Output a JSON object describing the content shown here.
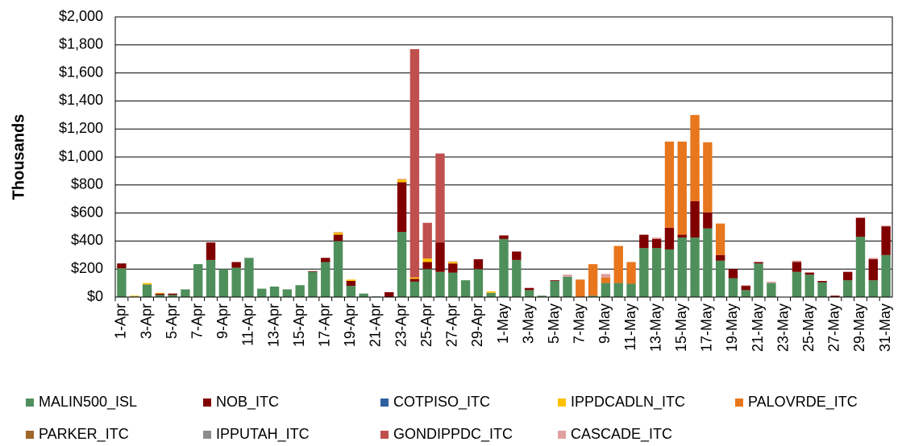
{
  "chart_data": {
    "type": "stacked_bar",
    "y_axis_label": "Thousands",
    "categories": [
      "1-Apr",
      null,
      "3-Apr",
      null,
      "5-Apr",
      null,
      "7-Apr",
      null,
      "9-Apr",
      null,
      "11-Apr",
      null,
      "13-Apr",
      null,
      "15-Apr",
      null,
      "17-Apr",
      null,
      "19-Apr",
      null,
      "21-Apr",
      null,
      "23-Apr",
      null,
      "25-Apr",
      null,
      "27-Apr",
      null,
      "29-Apr",
      null,
      "1-May",
      null,
      "3-May",
      null,
      "5-May",
      null,
      "7-May",
      null,
      "9-May",
      null,
      "11-May",
      null,
      "13-May",
      null,
      "15-May",
      null,
      "17-May",
      null,
      "19-May",
      null,
      "21-May",
      null,
      "23-May",
      null,
      "25-May",
      null,
      "27-May",
      null,
      "29-May",
      null,
      "31-May"
    ],
    "series": [
      {
        "name": "MALIN500_ISL",
        "color": "#4f8f5c",
        "values": [
          205,
          5,
          90,
          15,
          15,
          55,
          235,
          265,
          200,
          210,
          280,
          60,
          75,
          55,
          85,
          180,
          250,
          400,
          80,
          25,
          5,
          0,
          465,
          110,
          200,
          180,
          175,
          120,
          200,
          30,
          415,
          265,
          50,
          10,
          115,
          145,
          0,
          10,
          100,
          100,
          95,
          350,
          350,
          340,
          425,
          425,
          490,
          260,
          135,
          50,
          240,
          100,
          0,
          180,
          160,
          105,
          0,
          120,
          430,
          120,
          300
        ]
      },
      {
        "name": "NOB_ITC",
        "color": "#800000",
        "values": [
          35,
          0,
          0,
          10,
          10,
          0,
          0,
          125,
          0,
          40,
          0,
          0,
          0,
          0,
          0,
          5,
          30,
          45,
          35,
          0,
          0,
          35,
          355,
          20,
          50,
          210,
          65,
          0,
          70,
          0,
          25,
          60,
          15,
          0,
          5,
          0,
          0,
          0,
          0,
          0,
          0,
          95,
          65,
          155,
          20,
          260,
          115,
          40,
          65,
          30,
          10,
          0,
          0,
          70,
          15,
          10,
          10,
          60,
          135,
          150,
          205
        ]
      },
      {
        "name": "COTPISO_ITC",
        "color": "#2e5f9e",
        "values": [
          0,
          0,
          0,
          0,
          0,
          0,
          0,
          0,
          0,
          0,
          0,
          0,
          0,
          0,
          0,
          0,
          0,
          0,
          0,
          0,
          0,
          0,
          0,
          0,
          0,
          0,
          0,
          0,
          0,
          0,
          0,
          0,
          0,
          0,
          0,
          0,
          0,
          0,
          0,
          0,
          0,
          0,
          0,
          0,
          0,
          0,
          0,
          0,
          0,
          0,
          0,
          0,
          0,
          0,
          0,
          0,
          0,
          0,
          0,
          0,
          0
        ]
      },
      {
        "name": "IPPDCADLN_ITC",
        "color": "#ffc000",
        "values": [
          0,
          5,
          10,
          5,
          0,
          0,
          0,
          0,
          0,
          0,
          0,
          0,
          0,
          0,
          0,
          0,
          0,
          15,
          10,
          0,
          0,
          0,
          20,
          10,
          25,
          0,
          10,
          0,
          0,
          10,
          0,
          0,
          0,
          0,
          0,
          0,
          0,
          0,
          0,
          0,
          0,
          0,
          0,
          0,
          0,
          0,
          0,
          0,
          0,
          0,
          0,
          0,
          0,
          0,
          0,
          0,
          0,
          0,
          0,
          0,
          0
        ]
      },
      {
        "name": "PALOVRDE_ITC",
        "color": "#e8761c",
        "values": [
          0,
          0,
          0,
          0,
          0,
          0,
          0,
          0,
          0,
          0,
          0,
          0,
          0,
          0,
          0,
          0,
          0,
          0,
          0,
          0,
          0,
          0,
          0,
          0,
          0,
          0,
          0,
          0,
          0,
          0,
          0,
          0,
          0,
          0,
          0,
          0,
          125,
          225,
          40,
          265,
          155,
          0,
          0,
          615,
          665,
          615,
          500,
          225,
          0,
          0,
          0,
          0,
          0,
          0,
          0,
          0,
          0,
          0,
          0,
          0,
          0
        ]
      },
      {
        "name": "PARKER_ITC",
        "color": "#a0662a",
        "values": [
          0,
          0,
          0,
          0,
          0,
          0,
          0,
          0,
          0,
          0,
          0,
          0,
          0,
          0,
          0,
          0,
          0,
          0,
          0,
          0,
          0,
          0,
          0,
          0,
          0,
          0,
          0,
          0,
          0,
          0,
          0,
          0,
          0,
          0,
          0,
          0,
          0,
          0,
          0,
          0,
          0,
          0,
          0,
          0,
          0,
          0,
          0,
          0,
          0,
          0,
          0,
          0,
          0,
          0,
          0,
          0,
          0,
          0,
          0,
          0,
          0
        ]
      },
      {
        "name": "IPPUTAH_ITC",
        "color": "#8c8c8c",
        "values": [
          0,
          0,
          0,
          0,
          0,
          0,
          0,
          0,
          0,
          0,
          0,
          0,
          0,
          0,
          0,
          0,
          0,
          0,
          0,
          0,
          0,
          0,
          0,
          0,
          0,
          0,
          0,
          0,
          0,
          0,
          0,
          0,
          0,
          0,
          0,
          0,
          0,
          0,
          0,
          0,
          0,
          0,
          0,
          0,
          0,
          0,
          0,
          0,
          0,
          0,
          0,
          0,
          0,
          0,
          0,
          0,
          0,
          0,
          0,
          0,
          0
        ]
      },
      {
        "name": "GONDIPPDC_ITC",
        "color": "#c0504d",
        "values": [
          0,
          0,
          0,
          0,
          0,
          0,
          0,
          0,
          0,
          0,
          0,
          0,
          0,
          0,
          0,
          0,
          0,
          0,
          0,
          0,
          0,
          0,
          0,
          1630,
          255,
          635,
          0,
          0,
          0,
          0,
          0,
          0,
          0,
          0,
          0,
          0,
          0,
          0,
          0,
          0,
          0,
          0,
          0,
          0,
          0,
          0,
          0,
          0,
          0,
          0,
          0,
          0,
          0,
          0,
          0,
          0,
          0,
          0,
          0,
          0,
          0
        ]
      },
      {
        "name": "CASCADE_ITC",
        "color": "#e0a0a0",
        "values": [
          0,
          0,
          0,
          0,
          0,
          0,
          0,
          0,
          0,
          0,
          0,
          0,
          0,
          0,
          0,
          0,
          0,
          5,
          0,
          0,
          0,
          0,
          5,
          0,
          0,
          0,
          5,
          0,
          0,
          0,
          0,
          0,
          0,
          0,
          0,
          15,
          0,
          0,
          25,
          0,
          0,
          0,
          10,
          0,
          0,
          0,
          0,
          0,
          0,
          5,
          0,
          10,
          0,
          10,
          0,
          0,
          0,
          0,
          5,
          10,
          5
        ]
      }
    ],
    "ylim": [
      0,
      2000
    ],
    "yticks": [
      {
        "value": 0,
        "label": "$0"
      },
      {
        "value": 200,
        "label": "$200"
      },
      {
        "value": 400,
        "label": "$400"
      },
      {
        "value": 600,
        "label": "$600"
      },
      {
        "value": 800,
        "label": "$800"
      },
      {
        "value": 1000,
        "label": "$1,000"
      },
      {
        "value": 1200,
        "label": "$1,200"
      },
      {
        "value": 1400,
        "label": "$1,400"
      },
      {
        "value": 1600,
        "label": "$1,600"
      },
      {
        "value": 1800,
        "label": "$1,800"
      },
      {
        "value": 2000,
        "label": "$2,000"
      }
    ],
    "grid": true,
    "legend": "bottom"
  }
}
